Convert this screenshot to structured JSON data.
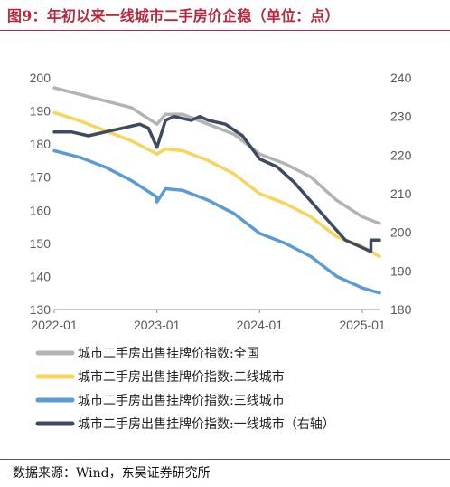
{
  "title": "图9：年初以来一线城市二手房价企稳（单位：点）",
  "source": "数据来源：Wind，东吴证券研究所",
  "chart_data": {
    "type": "line",
    "left_axis": {
      "ticks": [
        "200",
        "190",
        "180",
        "170",
        "160",
        "150",
        "140",
        "130"
      ],
      "ylim": [
        130,
        200
      ]
    },
    "right_axis": {
      "ticks": [
        "240",
        "230",
        "220",
        "210",
        "200",
        "190",
        "180"
      ],
      "ylim": [
        180,
        240
      ]
    },
    "x_axis": {
      "ticks": [
        "2022-01",
        "2023-01",
        "2024-01",
        "2025-01"
      ],
      "xlim": [
        "2022-01",
        "2025-03"
      ]
    },
    "grid": false,
    "legend_position": "bottom",
    "series": [
      {
        "name": "城市二手房出售挂牌价指数:全国",
        "axis": "left",
        "color": "#b3b3b3",
        "points": [
          [
            "2022-01",
            197
          ],
          [
            "2022-04",
            195
          ],
          [
            "2022-07",
            193
          ],
          [
            "2022-10",
            191
          ],
          [
            "2023-01",
            186
          ],
          [
            "2023-02",
            189
          ],
          [
            "2023-04",
            189
          ],
          [
            "2023-07",
            186
          ],
          [
            "2023-10",
            183
          ],
          [
            "2024-01",
            177
          ],
          [
            "2024-04",
            174
          ],
          [
            "2024-07",
            170
          ],
          [
            "2024-10",
            163
          ],
          [
            "2025-01",
            158
          ],
          [
            "2025-03",
            156
          ]
        ]
      },
      {
        "name": "城市二手房出售挂牌价指数:二线城市",
        "axis": "left",
        "color": "#f9d45c",
        "points": [
          [
            "2022-01",
            189.5
          ],
          [
            "2022-04",
            187
          ],
          [
            "2022-07",
            184
          ],
          [
            "2022-10",
            181
          ],
          [
            "2023-01",
            177
          ],
          [
            "2023-02",
            178.5
          ],
          [
            "2023-04",
            178
          ],
          [
            "2023-07",
            175
          ],
          [
            "2023-10",
            171
          ],
          [
            "2024-01",
            165
          ],
          [
            "2024-04",
            162
          ],
          [
            "2024-07",
            158
          ],
          [
            "2024-10",
            152
          ],
          [
            "2025-01",
            149
          ],
          [
            "2025-03",
            146
          ]
        ]
      },
      {
        "name": "城市二手房出售挂牌价指数:三线城市",
        "axis": "left",
        "color": "#5b9bd5",
        "points": [
          [
            "2022-01",
            178
          ],
          [
            "2022-04",
            176
          ],
          [
            "2022-07",
            173
          ],
          [
            "2022-10",
            169
          ],
          [
            "2023-01",
            164
          ],
          [
            "2023-01",
            162.5
          ],
          [
            "2023-02",
            166.5
          ],
          [
            "2023-04",
            166
          ],
          [
            "2023-07",
            163
          ],
          [
            "2023-10",
            159
          ],
          [
            "2024-01",
            153
          ],
          [
            "2024-04",
            150
          ],
          [
            "2024-07",
            146
          ],
          [
            "2024-10",
            140
          ],
          [
            "2025-01",
            136.5
          ],
          [
            "2025-03",
            135
          ]
        ]
      },
      {
        "name": "城市二手房出售挂牌价指数:一线城市（右轴）",
        "axis": "right",
        "color": "#3e4a61",
        "points": [
          [
            "2022-01",
            226
          ],
          [
            "2022-03",
            226
          ],
          [
            "2022-05",
            225
          ],
          [
            "2022-07",
            226
          ],
          [
            "2022-09",
            227
          ],
          [
            "2022-11",
            228
          ],
          [
            "2022-12",
            227
          ],
          [
            "2023-01",
            222
          ],
          [
            "2023-02",
            229
          ],
          [
            "2023-03",
            230
          ],
          [
            "2023-05",
            229
          ],
          [
            "2023-06",
            230
          ],
          [
            "2023-07",
            229
          ],
          [
            "2023-09",
            228
          ],
          [
            "2023-11",
            225
          ],
          [
            "2024-01",
            219
          ],
          [
            "2024-03",
            217
          ],
          [
            "2024-05",
            213
          ],
          [
            "2024-07",
            208
          ],
          [
            "2024-09",
            203
          ],
          [
            "2024-11",
            198
          ],
          [
            "2025-01",
            196
          ],
          [
            "2025-02",
            195
          ],
          [
            "2025-02",
            198
          ],
          [
            "2025-03",
            198
          ]
        ]
      }
    ]
  }
}
